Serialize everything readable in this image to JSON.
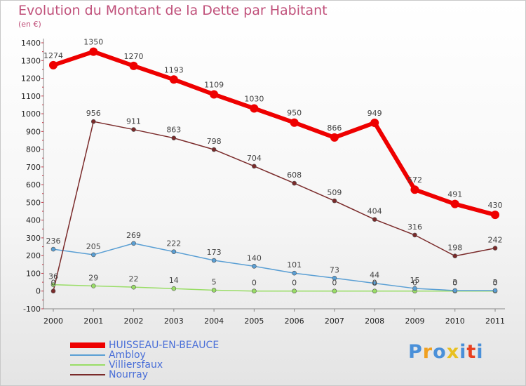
{
  "header": {
    "title": "Evolution du Montant de la Dette par Habitant",
    "unit": "(en €)"
  },
  "chart_data": {
    "type": "line",
    "title": "Evolution du Montant de la Dette par Habitant",
    "ylabel": "(en €)",
    "xlabel": "",
    "x": [
      "2000",
      "2001",
      "2002",
      "2003",
      "2004",
      "2005",
      "2006",
      "2007",
      "2008",
      "2009",
      "2010",
      "2011"
    ],
    "ylim": [
      -100,
      1400
    ],
    "yticks": [
      -100,
      0,
      100,
      200,
      300,
      400,
      500,
      600,
      700,
      800,
      900,
      1000,
      1100,
      1200,
      1300,
      1400
    ],
    "grid": false,
    "legend_position": "bottom-left",
    "series": [
      {
        "name": "HUISSEAU-EN-BEAUCE",
        "color": "#ee0000",
        "values": [
          1274,
          1350,
          1270,
          1193,
          1109,
          1030,
          950,
          866,
          949,
          572,
          491,
          430
        ]
      },
      {
        "name": "Ambloy",
        "color": "#5a9fd4",
        "values": [
          236,
          205,
          269,
          222,
          173,
          140,
          101,
          73,
          44,
          15,
          3,
          3
        ]
      },
      {
        "name": "Villiersfaux",
        "color": "#99dd66",
        "values": [
          36,
          29,
          22,
          14,
          5,
          0,
          0,
          0,
          0,
          0,
          0,
          0
        ]
      },
      {
        "name": "Nourray",
        "color": "#7a2a2a",
        "values": [
          0,
          956,
          911,
          863,
          798,
          704,
          608,
          509,
          404,
          316,
          198,
          242
        ]
      }
    ]
  },
  "logo": {
    "letters": [
      "P",
      "r",
      "o",
      "x",
      "i",
      "t",
      "i"
    ],
    "colors": [
      "#4a90d9",
      "#f0a020",
      "#4a90d9",
      "#e8c020",
      "#4a90d9",
      "#e84020",
      "#4a90d9"
    ]
  }
}
